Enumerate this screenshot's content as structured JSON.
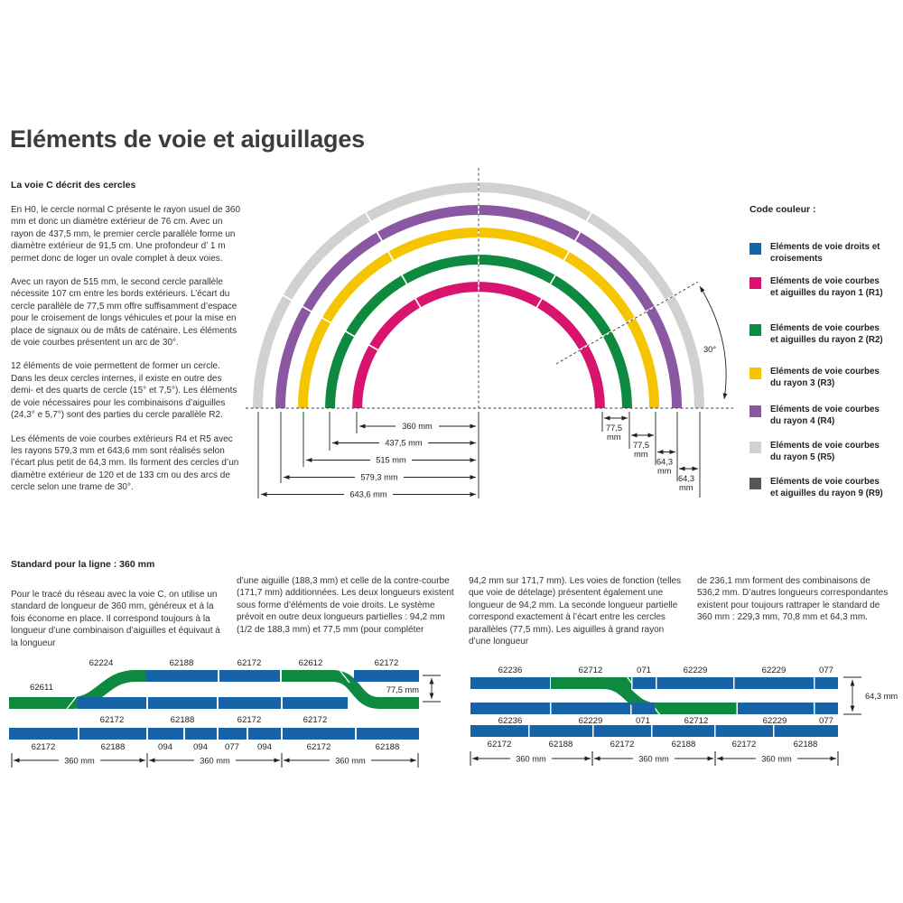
{
  "page": {
    "title": "Eléments de voie et aiguillages"
  },
  "intro": {
    "heading": "La voie C décrit des cercles",
    "paragraphs": [
      "En H0, le cercle normal C présente le rayon usuel de 360 mm et donc un diamètre extérieur de 76 cm. Avec un rayon de 437,5 mm, le premier cercle parallèle forme un diamètre extérieur de 91,5 cm. Une profondeur d’ 1 m permet donc de loger un ovale complet à deux voies.",
      "Avec un rayon de 515 mm, le second cercle parallèle nécessite 107 cm entre les bords extérieurs. L’écart du cercle parallèle de 77,5 mm offre suffisamment d’espace pour le croisement de longs véhicules et pour la mise en place de signaux ou de mâts de caténaire. Les éléments de voie courbes présentent un arc de 30°.",
      "12 éléments de voie permettent de former un cercle. Dans les deux cercles internes, il existe en outre des demi- et des quarts de cercle (15° et 7,5°). Les  éléments de voie nécessaires pour les combinaisons d’aiguilles (24,3° e 5,7°) sont des parties du cercle parallèle R2.",
      "Les éléments de voie courbes extérieurs R4 et R5 avec les rayons 579,3 mm et 643,6 mm sont réalisés selon l’écart plus petit de 64,3 mm. Ils forment des cercles d’un diamètre extérieur de 120 et de 133 cm ou des arcs de cercle selon une trame de 30°."
    ]
  },
  "legend": {
    "title": "Code couleur :",
    "items": [
      {
        "color": "#1663a8",
        "label": "Eléments de voie droits et croisements"
      },
      {
        "color": "#d9146f",
        "label": "Eléments de voie courbes et aiguilles du rayon 1 (R1)"
      },
      {
        "color": "#0d8a3f",
        "label": "Eléments de voie courbes et aiguilles du rayon 2 (R2)"
      },
      {
        "color": "#f5c500",
        "label": "Eléments de voie courbes du rayon 3 (R3)"
      },
      {
        "color": "#8a57a2",
        "label": "Eléments de voie courbes du rayon 4 (R4)"
      },
      {
        "color": "#d0d2d0",
        "label": "Eléments de voie courbes du rayon 5 (R5)"
      },
      {
        "color": "#55585a",
        "label": "Eléments de voie courbes et aiguilles du rayon 9 (R9)"
      }
    ]
  },
  "circle_diagram": {
    "rings": [
      {
        "id": "R5",
        "color": "#d0d2d0",
        "radius_mm": 643.6
      },
      {
        "id": "R4",
        "color": "#8a57a2",
        "radius_mm": 579.3
      },
      {
        "id": "R3",
        "color": "#f5c500",
        "radius_mm": 515
      },
      {
        "id": "R2",
        "color": "#0d8a3f",
        "radius_mm": 437.5
      },
      {
        "id": "R1",
        "color": "#d9146f",
        "radius_mm": 360
      }
    ],
    "radii_labels": [
      "360 mm",
      "437,5 mm",
      "515 mm",
      "579,3 mm",
      "643,6 mm"
    ],
    "gaps": [
      {
        "value": "77,5",
        "unit": "mm"
      },
      {
        "value": "77,5",
        "unit": "mm"
      },
      {
        "value": "64,3",
        "unit": "mm"
      },
      {
        "value": "64,3",
        "unit": "mm"
      }
    ],
    "angle_label": "30°"
  },
  "standard": {
    "heading": "Standard pour la ligne : 360 mm",
    "columns": [
      "Pour le tracé du réseau avec la voie C, on utilise un standard de longueur de 360 mm, généreux et à la fois économe en place. Il correspond toujours à la longueur d’une combinaison d’aiguilles et équivaut à la longueur",
      "d’une aiguille (188,3 mm) et celle de la contre-courbe (171,7 mm) additionnées. Les deux longueurs existent sous forme d’éléments de voie droits. Le système prévoit en outre deux longueurs partielles : 94,2 mm (1/2 de 188,3 mm) et 77,5 mm (pour compléter",
      "94,2 mm sur 171,7 mm). Les voies de fonction (telles que voie de dételage) présentent également une longueur de 94,2 mm. La seconde longueur partielle correspond exactement à l’écart entre les cercles parallèles (77,5 mm). Les aiguilles à grand rayon d’une longueur",
      "de 236,1 mm forment des combinaisons de 536,2 mm. D’autres longueurs correspondantes existent pour toujours rattraper le standard de 360 mm : 229,3 mm, 70,8 mm et 64,3 mm."
    ]
  },
  "diagram_left": {
    "left_label": "62611",
    "top_labels": [
      "62224",
      "62188",
      "62172",
      "62612",
      "62172"
    ],
    "middle_labels": [
      "62172",
      "62188",
      "62172",
      "62172"
    ],
    "bottom_labels": [
      "62172",
      "62188",
      "094",
      "094",
      "077",
      "094",
      "62172",
      "62188"
    ],
    "dim_labels": [
      "360 mm",
      "360 mm",
      "360 mm"
    ],
    "gap_label": "77,5 mm"
  },
  "diagram_right": {
    "top_labels": [
      "62236",
      "62712",
      "071",
      "62229",
      "62229",
      "077"
    ],
    "middle_labels": [
      "62236",
      "62229",
      "071",
      "62712",
      "62229",
      "077"
    ],
    "bottom_labels": [
      "62172",
      "62188",
      "62172",
      "62188",
      "62172",
      "62188"
    ],
    "dim_labels": [
      "360 mm",
      "360 mm",
      "360 mm"
    ],
    "gap_label": "64,3 mm"
  },
  "colors": {
    "track_blue": "#1663a8",
    "track_green": "#0d8a3f"
  }
}
